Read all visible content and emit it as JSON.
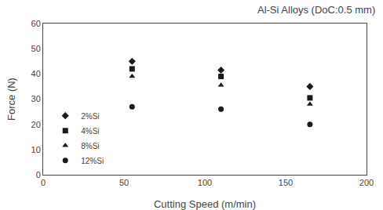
{
  "chart_data": {
    "type": "scatter",
    "title": "Al-Si Alloys (DoC:0.5 mm)",
    "xlabel": "Cutting Speed (m/min)",
    "ylabel": "Force (N)",
    "x": [
      55,
      110,
      165
    ],
    "series": [
      {
        "name": "2%Si",
        "color": "#1a1a1a",
        "marker": "diamond",
        "values": [
          45,
          41.5,
          35
        ]
      },
      {
        "name": "4%Si",
        "color": "#1a1a1a",
        "marker": "square",
        "values": [
          42,
          39,
          30.5
        ]
      },
      {
        "name": "8%Si",
        "color": "#1a1a1a",
        "marker": "triangle-up",
        "values": [
          39,
          35.5,
          28
        ]
      },
      {
        "name": "12%Si",
        "color": "#1a1a1a",
        "marker": "circle",
        "values": [
          27,
          26,
          20
        ]
      }
    ],
    "xlim": [
      0,
      200
    ],
    "ylim": [
      0,
      60
    ],
    "xticks": [
      0,
      50,
      100,
      150,
      200
    ],
    "yticks": [
      0,
      10,
      20,
      30,
      40,
      50,
      60
    ],
    "legend": "lower left",
    "grid": false
  }
}
